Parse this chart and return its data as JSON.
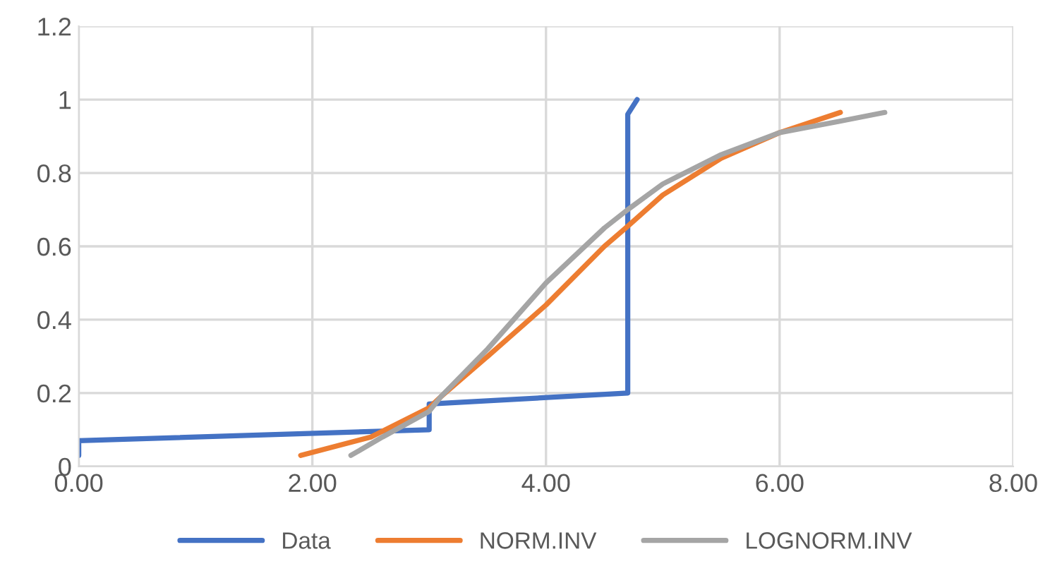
{
  "chart_data": {
    "type": "line",
    "xlim": [
      0,
      8
    ],
    "ylim": [
      0,
      1.2
    ],
    "xticks": [
      {
        "value": 0,
        "label": "0.00"
      },
      {
        "value": 2,
        "label": "2.00"
      },
      {
        "value": 4,
        "label": "4.00"
      },
      {
        "value": 6,
        "label": "6.00"
      },
      {
        "value": 8,
        "label": "8.00"
      }
    ],
    "yticks": [
      0,
      0.2,
      0.4,
      0.6,
      0.8,
      1,
      1.2
    ],
    "grid": true,
    "legend": "bottom",
    "marker": "none",
    "line_style": "solid",
    "series": [
      {
        "name": "Data",
        "color": "#4472c4",
        "x": [
          0,
          0,
          3.0,
          3.0,
          4.7,
          4.7,
          4.78
        ],
        "values": [
          0.03,
          0.07,
          0.1,
          0.17,
          0.2,
          0.96,
          1.0
        ]
      },
      {
        "name": "NORM.INV",
        "color": "#ed7d31",
        "x": [
          1.9,
          2.5,
          3.0,
          3.1,
          3.5,
          4.0,
          4.5,
          4.7,
          5.0,
          5.5,
          6.0,
          6.52
        ],
        "values": [
          0.03,
          0.08,
          0.16,
          0.19,
          0.3,
          0.44,
          0.6,
          0.655,
          0.74,
          0.84,
          0.91,
          0.965
        ]
      },
      {
        "name": "LOGNORM.INV",
        "color": "#a5a5a5",
        "x": [
          2.33,
          2.6,
          3.0,
          3.1,
          3.5,
          4.0,
          4.5,
          4.7,
          5.0,
          5.5,
          6.0,
          6.5,
          6.9
        ],
        "values": [
          0.03,
          0.08,
          0.15,
          0.19,
          0.32,
          0.5,
          0.65,
          0.7,
          0.77,
          0.85,
          0.91,
          0.94,
          0.965
        ]
      }
    ]
  }
}
